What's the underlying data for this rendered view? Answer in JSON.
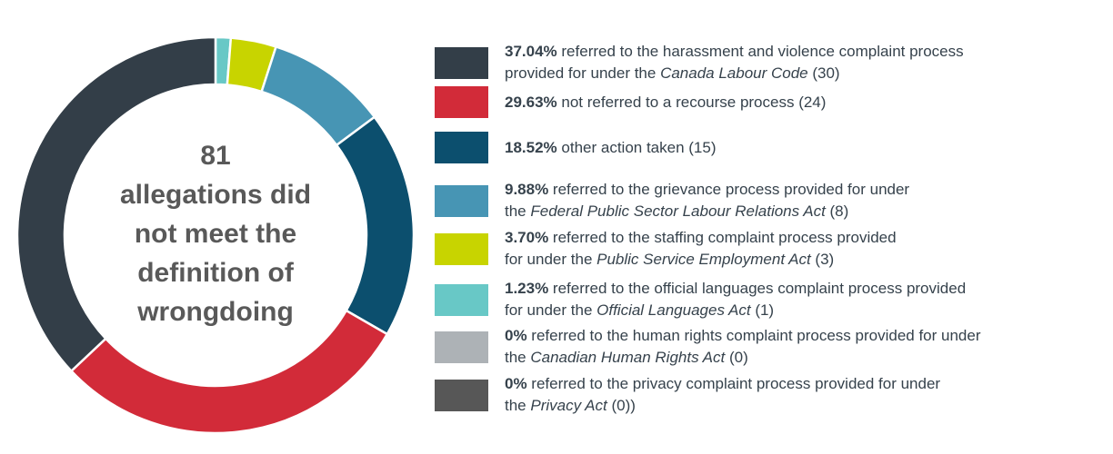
{
  "chart_data": {
    "type": "pie",
    "subtype": "donut",
    "title": "",
    "center_label": "81\nallegations did\nnot meet the\ndefinition of\nwrongdoing",
    "total": 81,
    "layout": {
      "start_angle_deg": 0,
      "direction": "clockwise from top, smallest slice first",
      "legend_position": "right"
    },
    "series": [
      {
        "label": "referred to the harassment and violence complaint process provided for under the Canada Labour Code",
        "percent": 37.04,
        "count": 30,
        "color": "#333E48"
      },
      {
        "label": "not referred to a recourse process",
        "percent": 29.63,
        "count": 24,
        "color": "#D22B39"
      },
      {
        "label": "other action taken",
        "percent": 18.52,
        "count": 15,
        "color": "#0C4F6E"
      },
      {
        "label": "referred to the grievance process provided for under the Federal Public Sector Labour Relations Act",
        "percent": 9.88,
        "count": 8,
        "color": "#4795B4"
      },
      {
        "label": "referred to the staffing complaint process provided for under the Public Service Employment Act",
        "percent": 3.7,
        "count": 3,
        "color": "#C8D400"
      },
      {
        "label": "referred to the official languages complaint process provided for under the Official Languages Act",
        "percent": 1.23,
        "count": 1,
        "color": "#68C8C6"
      },
      {
        "label": "referred to the human rights complaint process provided for under the Canadian Human Rights Act",
        "percent": 0,
        "count": 0,
        "color": "#ADB2B6"
      },
      {
        "label": "referred to the privacy complaint process provided for under the Privacy Act",
        "percent": 0,
        "count": 0,
        "color": "#575757"
      }
    ]
  },
  "legend": {
    "entries": [
      {
        "color": "#333E48",
        "lines": [
          [
            {
              "t": "37.04%",
              "b": 1
            },
            {
              "t": " referred to the harassment and violence complaint process"
            }
          ],
          [
            {
              "t": "provided for under the "
            },
            {
              "t": "Canada Labour Code",
              "i": 1
            },
            {
              "t": " (30)"
            }
          ]
        ]
      },
      {
        "color": "#D22B39",
        "lines": [
          [
            {
              "t": "29.63%",
              "b": 1
            },
            {
              "t": " not referred to a recourse process (24)"
            }
          ]
        ]
      },
      {
        "color": "#0C4F6E",
        "lines": [
          [
            {
              "t": "18.52%",
              "b": 1
            },
            {
              "t": " other action taken (15)"
            }
          ]
        ]
      },
      {
        "color": "#4795B4",
        "lines": [
          [
            {
              "t": "9.88%",
              "b": 1
            },
            {
              "t": " referred to the grievance process provided for under"
            }
          ],
          [
            {
              "t": "the "
            },
            {
              "t": "Federal Public Sector Labour Relations Act",
              "i": 1
            },
            {
              "t": " (8)"
            }
          ]
        ]
      },
      {
        "color": "#C8D400",
        "lines": [
          [
            {
              "t": "3.70%",
              "b": 1
            },
            {
              "t": " referred to the  staffing complaint process provided"
            }
          ],
          [
            {
              "t": "for under the "
            },
            {
              "t": "Public Service Employment Act",
              "i": 1
            },
            {
              "t": " (3)"
            }
          ]
        ]
      },
      {
        "color": "#68C8C6",
        "lines": [
          [
            {
              "t": "1.23%",
              "b": 1
            },
            {
              "t": " referred to the official languages complaint process provided"
            }
          ],
          [
            {
              "t": "for under the "
            },
            {
              "t": "Official Languages Act",
              "i": 1
            },
            {
              "t": " (1)"
            }
          ]
        ]
      },
      {
        "color": "#ADB2B6",
        "lines": [
          [
            {
              "t": "0%",
              "b": 1
            },
            {
              "t": " referred to the human rights complaint process provided for under"
            }
          ],
          [
            {
              "t": "the "
            },
            {
              "t": "Canadian Human Rights Act",
              "i": 1
            },
            {
              "t": " (0)"
            }
          ]
        ]
      },
      {
        "color": "#575757",
        "lines": [
          [
            {
              "t": "0%",
              "b": 1
            },
            {
              "t": " referred to the privacy complaint process provided for under"
            }
          ],
          [
            {
              "t": "the "
            },
            {
              "t": "Privacy Act",
              "i": 1
            },
            {
              "t": " (0))"
            }
          ]
        ]
      }
    ]
  }
}
